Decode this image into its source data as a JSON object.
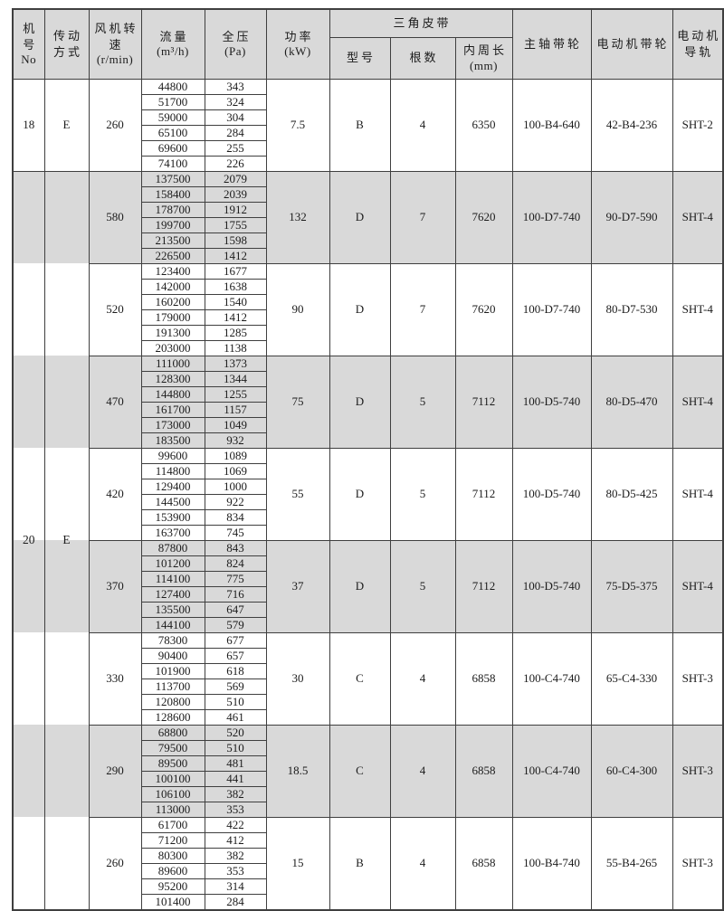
{
  "table": {
    "colors": {
      "header_bg": "#d9d9d9",
      "stripe_bg": "#d9d9d9",
      "border": "#3f3f3f",
      "page_bg": "#ffffff"
    },
    "headers": {
      "machine_l1": "机号",
      "machine_l2": "No",
      "drive_l1": "传动",
      "drive_l2": "方式",
      "speed_l1": "风机转速",
      "speed_l2": "(r/min)",
      "flow_l1": "流量",
      "flow_l2": "(m³/h)",
      "pressure_l1": "全压",
      "pressure_l2": "(Pa)",
      "power_l1": "功率",
      "power_l2": "(kW)",
      "vbelt_group": "三角皮带",
      "belt_model": "型号",
      "belt_count": "根数",
      "belt_length_l1": "内周长",
      "belt_length_l2": "(mm)",
      "shaft_pulley": "主轴带轮",
      "motor_pulley": "电动机带轮",
      "rail_l1": "电动机",
      "rail_l2": "导轨"
    },
    "blocks": [
      {
        "machine": "18",
        "drive": "E",
        "groups": [
          {
            "rpm": "260",
            "rows": [
              [
                "44800",
                "343"
              ],
              [
                "51700",
                "324"
              ],
              [
                "59000",
                "304"
              ],
              [
                "65100",
                "284"
              ],
              [
                "69600",
                "255"
              ],
              [
                "74100",
                "226"
              ]
            ],
            "power": "7.5",
            "model": "B",
            "count": "4",
            "length": "6350",
            "shaft": "100-B4-640",
            "motor": "42-B4-236",
            "rail": "SHT-2",
            "shaded": false
          }
        ]
      },
      {
        "machine": "20",
        "drive": "E",
        "groups": [
          {
            "rpm": "580",
            "rows": [
              [
                "137500",
                "2079"
              ],
              [
                "158400",
                "2039"
              ],
              [
                "178700",
                "1912"
              ],
              [
                "199700",
                "1755"
              ],
              [
                "213500",
                "1598"
              ],
              [
                "226500",
                "1412"
              ]
            ],
            "power": "132",
            "model": "D",
            "count": "7",
            "length": "7620",
            "shaft": "100-D7-740",
            "motor": "90-D7-590",
            "rail": "SHT-4",
            "shaded": true
          },
          {
            "rpm": "520",
            "rows": [
              [
                "123400",
                "1677"
              ],
              [
                "142000",
                "1638"
              ],
              [
                "160200",
                "1540"
              ],
              [
                "179000",
                "1412"
              ],
              [
                "191300",
                "1285"
              ],
              [
                "203000",
                "1138"
              ]
            ],
            "power": "90",
            "model": "D",
            "count": "7",
            "length": "7620",
            "shaft": "100-D7-740",
            "motor": "80-D7-530",
            "rail": "SHT-4",
            "shaded": false
          },
          {
            "rpm": "470",
            "rows": [
              [
                "111000",
                "1373"
              ],
              [
                "128300",
                "1344"
              ],
              [
                "144800",
                "1255"
              ],
              [
                "161700",
                "1157"
              ],
              [
                "173000",
                "1049"
              ],
              [
                "183500",
                "932"
              ]
            ],
            "power": "75",
            "model": "D",
            "count": "5",
            "length": "7112",
            "shaft": "100-D5-740",
            "motor": "80-D5-470",
            "rail": "SHT-4",
            "shaded": true
          },
          {
            "rpm": "420",
            "rows": [
              [
                "99600",
                "1089"
              ],
              [
                "114800",
                "1069"
              ],
              [
                "129400",
                "1000"
              ],
              [
                "144500",
                "922"
              ],
              [
                "153900",
                "834"
              ],
              [
                "163700",
                "745"
              ]
            ],
            "power": "55",
            "model": "D",
            "count": "5",
            "length": "7112",
            "shaft": "100-D5-740",
            "motor": "80-D5-425",
            "rail": "SHT-4",
            "shaded": false
          },
          {
            "rpm": "370",
            "rows": [
              [
                "87800",
                "843"
              ],
              [
                "101200",
                "824"
              ],
              [
                "114100",
                "775"
              ],
              [
                "127400",
                "716"
              ],
              [
                "135500",
                "647"
              ],
              [
                "144100",
                "579"
              ]
            ],
            "power": "37",
            "model": "D",
            "count": "5",
            "length": "7112",
            "shaft": "100-D5-740",
            "motor": "75-D5-375",
            "rail": "SHT-4",
            "shaded": true
          },
          {
            "rpm": "330",
            "rows": [
              [
                "78300",
                "677"
              ],
              [
                "90400",
                "657"
              ],
              [
                "101900",
                "618"
              ],
              [
                "113700",
                "569"
              ],
              [
                "120800",
                "510"
              ],
              [
                "128600",
                "461"
              ]
            ],
            "power": "30",
            "model": "C",
            "count": "4",
            "length": "6858",
            "shaft": "100-C4-740",
            "motor": "65-C4-330",
            "rail": "SHT-3",
            "shaded": false
          },
          {
            "rpm": "290",
            "rows": [
              [
                "68800",
                "520"
              ],
              [
                "79500",
                "510"
              ],
              [
                "89500",
                "481"
              ],
              [
                "100100",
                "441"
              ],
              [
                "106100",
                "382"
              ],
              [
                "113000",
                "353"
              ]
            ],
            "power": "18.5",
            "model": "C",
            "count": "4",
            "length": "6858",
            "shaft": "100-C4-740",
            "motor": "60-C4-300",
            "rail": "SHT-3",
            "shaded": true
          },
          {
            "rpm": "260",
            "rows": [
              [
                "61700",
                "422"
              ],
              [
                "71200",
                "412"
              ],
              [
                "80300",
                "382"
              ],
              [
                "89600",
                "353"
              ],
              [
                "95200",
                "314"
              ],
              [
                "101400",
                "284"
              ]
            ],
            "power": "15",
            "model": "B",
            "count": "4",
            "length": "6858",
            "shaft": "100-B4-740",
            "motor": "55-B4-265",
            "rail": "SHT-3",
            "shaded": false
          }
        ]
      }
    ]
  }
}
